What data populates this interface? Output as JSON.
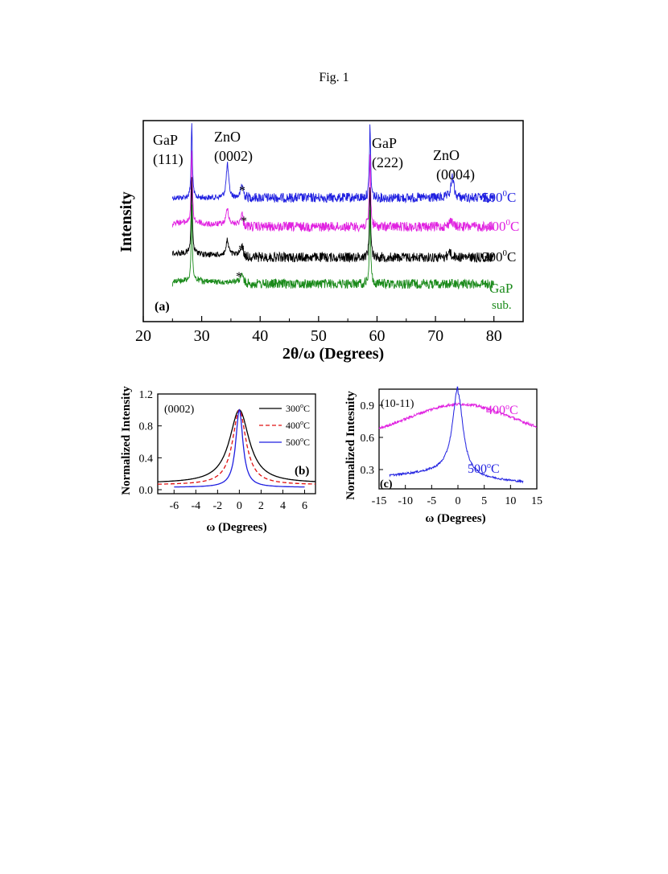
{
  "figure": {
    "caption": "Fig. 1"
  },
  "colors": {
    "s500": "#1f1fe0",
    "s400": "#e020e0",
    "s300": "#000000",
    "gap": "#1a8a1a",
    "axis": "#000000"
  },
  "chart_data": [
    {
      "id": "a",
      "type": "line",
      "panel_label": "(a)",
      "xlabel": "2θ/ω (Degrees)",
      "ylabel": "Intensity",
      "xlim": [
        20,
        85
      ],
      "xticks": [
        20,
        30,
        40,
        50,
        60,
        70,
        80
      ],
      "x_range": [
        25,
        80
      ],
      "series": [
        {
          "name": "500⁰C",
          "label_main": "500",
          "label_sup": "0",
          "label_tail": "C",
          "color": "#1f1fe0",
          "peaks": [
            [
              28.3,
              100
            ],
            [
              34.4,
              45
            ],
            [
              36.9,
              18
            ],
            [
              58.8,
              100
            ],
            [
              72.9,
              28
            ]
          ]
        },
        {
          "name": "400⁰C",
          "label_main": "400",
          "label_sup": "0",
          "label_tail": "C",
          "color": "#e020e0",
          "peaks": [
            [
              28.3,
              100
            ],
            [
              34.4,
              22
            ],
            [
              36.9,
              15
            ],
            [
              58.8,
              100
            ],
            [
              72.6,
              10
            ]
          ]
        },
        {
          "name": "300⁰C",
          "label_main": "300",
          "label_sup": "0",
          "label_tail": "C",
          "color": "#000000",
          "peaks": [
            [
              28.3,
              100
            ],
            [
              34.4,
              20
            ],
            [
              36.9,
              14
            ],
            [
              58.8,
              100
            ],
            [
              72.4,
              8
            ]
          ]
        },
        {
          "name": "GaP sub.",
          "label_main": "GaP",
          "label_line2": "sub.",
          "color": "#1a8a1a",
          "peaks": [
            [
              28.3,
              100
            ],
            [
              36.9,
              12
            ],
            [
              58.8,
              100
            ]
          ]
        }
      ],
      "annotations": [
        {
          "line1": "GaP",
          "line2": "(111)"
        },
        {
          "line1": "ZnO",
          "line2": "(0002)"
        },
        {
          "line1": "GaP",
          "line2": "(222)"
        },
        {
          "line1": "ZnO",
          "line2": "(0004)"
        }
      ],
      "marker": "*"
    },
    {
      "id": "b",
      "type": "line",
      "panel_label": "(b)",
      "reflection": "(0002)",
      "xlabel": "ω (Degrees)",
      "ylabel": "Normalized Intensity",
      "xlim": [
        -7.5,
        7
      ],
      "ylim": [
        -0.05,
        1.2
      ],
      "xticks": [
        -6,
        -4,
        -2,
        0,
        2,
        4,
        6
      ],
      "yticks": [
        0.0,
        0.4,
        0.8,
        1.2
      ],
      "ytick_labels": [
        "0.0",
        "0.4",
        "0.8",
        "1.2"
      ],
      "series": [
        {
          "name": "300°C",
          "label_main": "300",
          "label_sup": "o",
          "label_tail": "C",
          "color": "#000000",
          "dash": "",
          "fwhm": 2.2,
          "base": 0.08
        },
        {
          "name": "400°C",
          "label_main": "400",
          "label_sup": "o",
          "label_tail": "C",
          "color": "#e01010",
          "dash": "5,3",
          "fwhm": 1.5,
          "base": 0.06
        },
        {
          "name": "500°C",
          "label_main": "500",
          "label_sup": "o",
          "label_tail": "C",
          "color": "#1f1fe0",
          "dash": "",
          "fwhm": 0.8,
          "base": 0.03
        }
      ],
      "legend": "top-right"
    },
    {
      "id": "c",
      "type": "line",
      "panel_label": "(c)",
      "reflection": "(10-11)",
      "xlabel": "ω (Degrees)",
      "ylabel": "Normalized Intesnity",
      "xlim": [
        -15,
        15
      ],
      "ylim": [
        0.12,
        1.05
      ],
      "xticks": [
        -15,
        -10,
        -5,
        0,
        5,
        10,
        15
      ],
      "yticks": [
        0.3,
        0.6,
        0.9
      ],
      "ytick_labels": [
        "0.3",
        "0.6",
        "0.9"
      ],
      "series": [
        {
          "name": "400°C",
          "label_main": "400",
          "label_sup": "o",
          "label_tail": "C",
          "color": "#e020e0",
          "fwhm": 34,
          "base": 0.5,
          "x_range": [
            -15,
            15
          ]
        },
        {
          "name": "500°C",
          "label_main": "500",
          "label_sup": "o",
          "label_tail": "C",
          "color": "#1f1fe0",
          "fwhm": 2.4,
          "base": 0.2,
          "x_range": [
            -13,
            12.5
          ]
        }
      ]
    }
  ]
}
